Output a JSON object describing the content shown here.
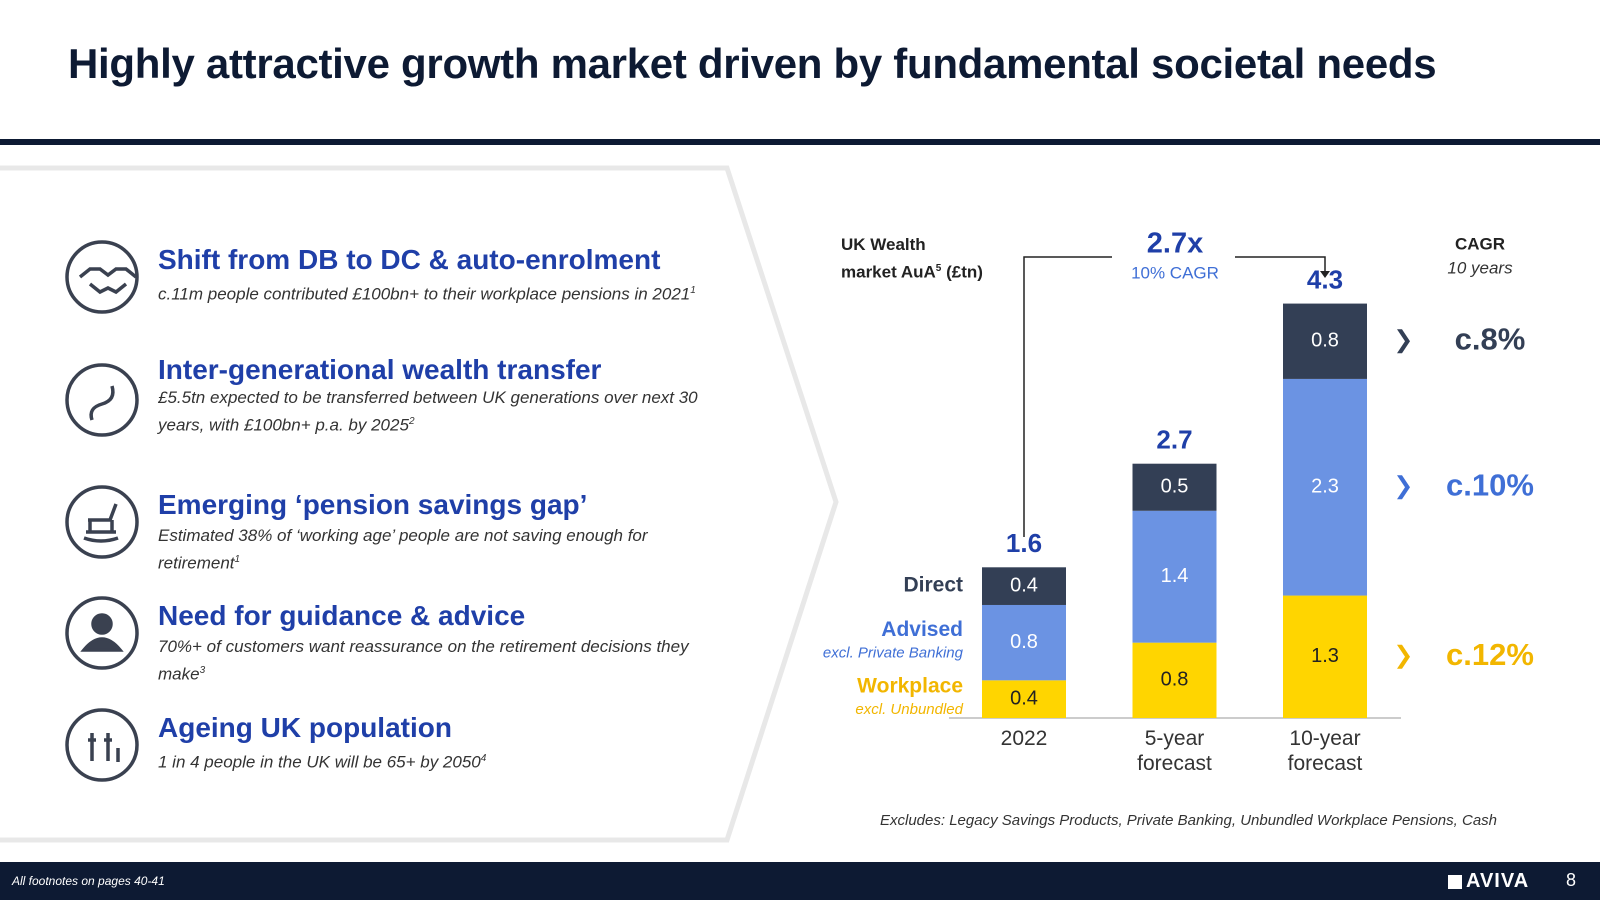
{
  "header": {
    "title": "Highly attractive growth market driven by fundamental societal needs"
  },
  "items": [
    {
      "title": "Shift from DB to DC & auto-enrolment",
      "text": "c.11m people contributed £100bn+ to their workplace pensions in 2021",
      "note": "1"
    },
    {
      "title": "Inter-generational wealth transfer",
      "text": "£5.5tn expected to be transferred between UK generations over next 30 years, with £100bn+ p.a. by 2025",
      "note": "2"
    },
    {
      "title": "Emerging ‘pension savings gap’",
      "text": "Estimated 38% of ‘working age’ people are not saving enough for retirement",
      "note": "1"
    },
    {
      "title": "Need for guidance & advice",
      "text": "70%+ of customers want reassurance on the retirement decisions they make",
      "note": "3"
    },
    {
      "title": "Ageing UK population",
      "text": "1 in 4 people in the UK will be 65+ by 2050",
      "note": "4"
    }
  ],
  "chart_data": {
    "type": "bar",
    "stacked": true,
    "ylabel": {
      "lines": [
        "UK Wealth",
        "market AuA"
      ],
      "note": "5",
      "unit": "(£tn)"
    },
    "categories": [
      "2022",
      "5-year forecast",
      "10-year forecast"
    ],
    "series": [
      {
        "name": "Workplace",
        "subtitle": "excl. Unbundled",
        "color": "#ffd500",
        "text_color": "#f2b600",
        "label_color": "#222222",
        "cagr": "c.12%",
        "values": [
          0.4,
          0.8,
          1.3
        ]
      },
      {
        "name": "Advised",
        "subtitle": "excl. Private Banking",
        "color": "#6b93e3",
        "text_color": "#3f6fd6",
        "label_color": "#ffffff",
        "cagr": "c.10%",
        "values": [
          0.8,
          1.4,
          2.3
        ]
      },
      {
        "name": "Direct",
        "color": "#333f55",
        "text_color": "#333f55",
        "label_color": "#ffffff",
        "cagr": "c.8%",
        "values": [
          0.4,
          0.5,
          0.8
        ]
      }
    ],
    "totals": [
      1.6,
      2.7,
      4.3
    ],
    "annotation": {
      "label": "2.7x",
      "text": "10% CAGR"
    },
    "cagr_title": "CAGR",
    "cagr_subtitle": "10 years",
    "note": "Excludes: Legacy Savings Products, Private Banking, Unbundled Workplace Pensions, Cash"
  },
  "footer": {
    "note": "All footnotes on pages 40-41",
    "logo": "AVIVA",
    "page": "8"
  }
}
